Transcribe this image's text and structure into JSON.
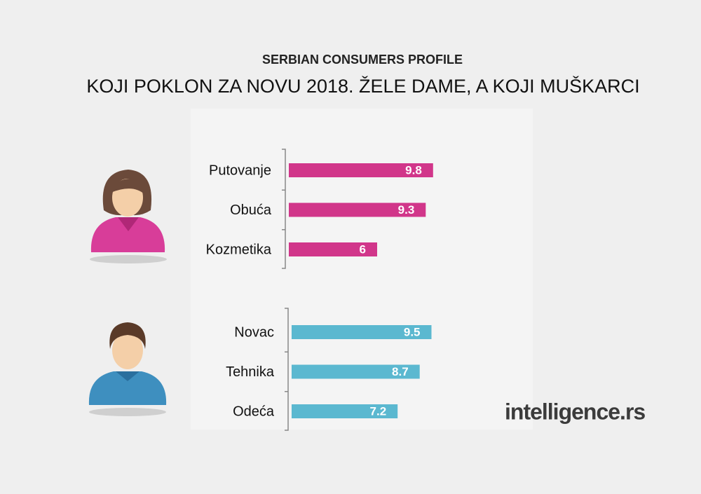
{
  "header": {
    "subtitle": "SERBIAN CONSUMERS PROFILE",
    "title": "KOJI POKLON ZA NOVU 2018. ŽELE DAME, A KOJI MUŠKARCI"
  },
  "chart_data": [
    {
      "type": "bar",
      "orientation": "horizontal",
      "categories": [
        "Putovanje",
        "Obuća",
        "Kozmetika"
      ],
      "values": [
        9.8,
        9.3,
        6
      ],
      "color": "#d1368a"
    },
    {
      "type": "bar",
      "orientation": "horizontal",
      "categories": [
        "Novac",
        "Tehnika",
        "Odeća"
      ],
      "values": [
        9.5,
        8.7,
        7.2
      ],
      "color": "#5bb8d0"
    }
  ],
  "logo": "intelligence.rs"
}
